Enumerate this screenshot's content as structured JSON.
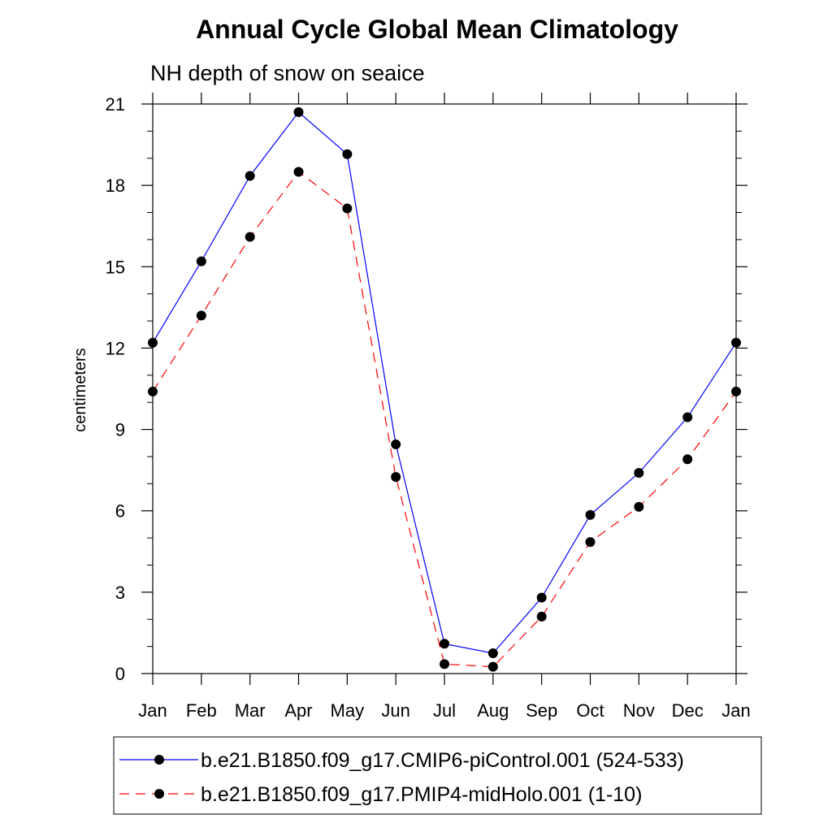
{
  "chart_data": {
    "type": "line",
    "title": "Annual Cycle Global Mean Climatology",
    "subtitle": "NH depth of snow on seaice",
    "xlabel": "",
    "ylabel": "centimeters",
    "categories": [
      "Jan",
      "Feb",
      "Mar",
      "Apr",
      "May",
      "Jun",
      "Jul",
      "Aug",
      "Sep",
      "Oct",
      "Nov",
      "Dec",
      "Jan"
    ],
    "ylim": [
      0,
      21
    ],
    "yticks": [
      "0",
      "3",
      "6",
      "9",
      "12",
      "15",
      "18",
      "21"
    ],
    "series": [
      {
        "name": "b.e21.B1850.f09_g17.CMIP6-piControl.001 (524-533)",
        "color": "#0000ff",
        "dash": "solid",
        "values": [
          12.2,
          15.2,
          18.35,
          20.7,
          19.15,
          8.45,
          1.1,
          0.75,
          2.8,
          5.85,
          7.4,
          9.45,
          12.2
        ]
      },
      {
        "name": "b.e21.B1850.f09_g17.PMIP4-midHolo.001 (1-10)",
        "color": "#ff0000",
        "dash": "dashed",
        "values": [
          10.4,
          13.2,
          16.1,
          18.5,
          17.15,
          7.25,
          0.35,
          0.25,
          2.1,
          4.85,
          6.15,
          7.9,
          10.4
        ]
      }
    ],
    "grid": false,
    "legend": "bottom"
  }
}
